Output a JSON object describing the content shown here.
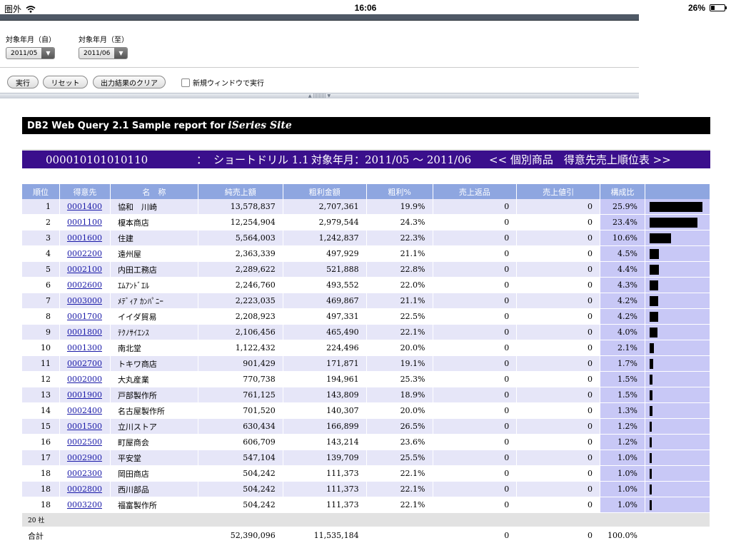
{
  "status": {
    "carrier": "圏外",
    "time": "16:06",
    "battery": "26%",
    "battery_level": 0.26
  },
  "filters": {
    "from_label": "対象年月（自）",
    "from_value": "2011/05",
    "to_label": "対象年月（至）",
    "to_value": "2011/06"
  },
  "buttons": {
    "run": "実行",
    "reset": "リセット",
    "clear": "出力結果のクリア",
    "new_window": "新規ウィンドウで実行"
  },
  "splitter_glyph": "▲ ||||||||| ▼",
  "banner": {
    "text": "DB2 Web Query 2.1 Sample report for",
    "site": "iSeries Site"
  },
  "report_title": {
    "code": "000010101010110",
    "sep": "：",
    "drill": "ショートドリル 1.1",
    "period": "対象年月：2011/05 ～ 2011/06",
    "heading": "<< 個別商品　得意先売上順位表 >>"
  },
  "columns": [
    "順位",
    "得意先",
    "名　称",
    "純売上額",
    "粗利金額",
    "粗利%",
    "売上返品",
    "売上値引",
    "構成比",
    ""
  ],
  "rows": [
    {
      "rank": "1",
      "code": "0001400",
      "name": "協和　川崎",
      "sales": "13,578,837",
      "gross": "2,707,361",
      "gross_pct": "19.9%",
      "returns": "0",
      "discounts": "0",
      "ratio": "25.9%",
      "ratio_value": 25.9
    },
    {
      "rank": "2",
      "code": "0001100",
      "name": "榎本商店",
      "sales": "12,254,904",
      "gross": "2,979,544",
      "gross_pct": "24.3%",
      "returns": "0",
      "discounts": "0",
      "ratio": "23.4%",
      "ratio_value": 23.4
    },
    {
      "rank": "3",
      "code": "0001600",
      "name": "住建",
      "sales": "5,564,003",
      "gross": "1,242,837",
      "gross_pct": "22.3%",
      "returns": "0",
      "discounts": "0",
      "ratio": "10.6%",
      "ratio_value": 10.6
    },
    {
      "rank": "4",
      "code": "0002200",
      "name": "遠州屋",
      "sales": "2,363,339",
      "gross": "497,929",
      "gross_pct": "21.1%",
      "returns": "0",
      "discounts": "0",
      "ratio": "4.5%",
      "ratio_value": 4.5
    },
    {
      "rank": "5",
      "code": "0002100",
      "name": "内田工務店",
      "sales": "2,289,622",
      "gross": "521,888",
      "gross_pct": "22.8%",
      "returns": "0",
      "discounts": "0",
      "ratio": "4.4%",
      "ratio_value": 4.4
    },
    {
      "rank": "6",
      "code": "0002600",
      "name": "ｴﾑｱﾝﾄﾞｴﾙ",
      "sales": "2,246,760",
      "gross": "493,552",
      "gross_pct": "22.0%",
      "returns": "0",
      "discounts": "0",
      "ratio": "4.3%",
      "ratio_value": 4.3
    },
    {
      "rank": "7",
      "code": "0003000",
      "name": "ﾒﾃﾞｨｱ ｶﾝﾊﾟﾆｰ",
      "sales": "2,223,035",
      "gross": "469,867",
      "gross_pct": "21.1%",
      "returns": "0",
      "discounts": "0",
      "ratio": "4.2%",
      "ratio_value": 4.2
    },
    {
      "rank": "8",
      "code": "0001700",
      "name": "イイダ貿易",
      "sales": "2,208,923",
      "gross": "497,331",
      "gross_pct": "22.5%",
      "returns": "0",
      "discounts": "0",
      "ratio": "4.2%",
      "ratio_value": 4.2
    },
    {
      "rank": "9",
      "code": "0001800",
      "name": "ﾃｸﾉｻｲｴﾝｽ",
      "sales": "2,106,456",
      "gross": "465,490",
      "gross_pct": "22.1%",
      "returns": "0",
      "discounts": "0",
      "ratio": "4.0%",
      "ratio_value": 4.0
    },
    {
      "rank": "10",
      "code": "0001300",
      "name": "南北堂",
      "sales": "1,122,432",
      "gross": "224,496",
      "gross_pct": "20.0%",
      "returns": "0",
      "discounts": "0",
      "ratio": "2.1%",
      "ratio_value": 2.1
    },
    {
      "rank": "11",
      "code": "0002700",
      "name": "トキワ商店",
      "sales": "901,429",
      "gross": "171,871",
      "gross_pct": "19.1%",
      "returns": "0",
      "discounts": "0",
      "ratio": "1.7%",
      "ratio_value": 1.7
    },
    {
      "rank": "12",
      "code": "0002000",
      "name": "大丸産業",
      "sales": "770,738",
      "gross": "194,961",
      "gross_pct": "25.3%",
      "returns": "0",
      "discounts": "0",
      "ratio": "1.5%",
      "ratio_value": 1.5
    },
    {
      "rank": "13",
      "code": "0001900",
      "name": "戸部製作所",
      "sales": "761,125",
      "gross": "143,809",
      "gross_pct": "18.9%",
      "returns": "0",
      "discounts": "0",
      "ratio": "1.5%",
      "ratio_value": 1.5
    },
    {
      "rank": "14",
      "code": "0002400",
      "name": "名古屋製作所",
      "sales": "701,520",
      "gross": "140,307",
      "gross_pct": "20.0%",
      "returns": "0",
      "discounts": "0",
      "ratio": "1.3%",
      "ratio_value": 1.3
    },
    {
      "rank": "15",
      "code": "0001500",
      "name": "立川ストア",
      "sales": "630,434",
      "gross": "166,899",
      "gross_pct": "26.5%",
      "returns": "0",
      "discounts": "0",
      "ratio": "1.2%",
      "ratio_value": 1.2
    },
    {
      "rank": "16",
      "code": "0002500",
      "name": "町屋商会",
      "sales": "606,709",
      "gross": "143,214",
      "gross_pct": "23.6%",
      "returns": "0",
      "discounts": "0",
      "ratio": "1.2%",
      "ratio_value": 1.2
    },
    {
      "rank": "17",
      "code": "0002900",
      "name": "平安堂",
      "sales": "547,104",
      "gross": "139,709",
      "gross_pct": "25.5%",
      "returns": "0",
      "discounts": "0",
      "ratio": "1.0%",
      "ratio_value": 1.0
    },
    {
      "rank": "18",
      "code": "0002300",
      "name": "岡田商店",
      "sales": "504,242",
      "gross": "111,373",
      "gross_pct": "22.1%",
      "returns": "0",
      "discounts": "0",
      "ratio": "1.0%",
      "ratio_value": 1.0
    },
    {
      "rank": "18",
      "code": "0002800",
      "name": "西川部品",
      "sales": "504,242",
      "gross": "111,373",
      "gross_pct": "22.1%",
      "returns": "0",
      "discounts": "0",
      "ratio": "1.0%",
      "ratio_value": 1.0
    },
    {
      "rank": "18",
      "code": "0003200",
      "name": "福富製作所",
      "sales": "504,242",
      "gross": "111,373",
      "gross_pct": "22.1%",
      "returns": "0",
      "discounts": "0",
      "ratio": "1.0%",
      "ratio_value": 1.0
    }
  ],
  "count_label": "20 社",
  "total": {
    "label": "合計",
    "sales": "52,390,096",
    "gross": "11,535,184",
    "returns": "0",
    "discounts": "0",
    "ratio": "100.0%"
  },
  "colors": {
    "header_bg": "#8ea6e0",
    "title_bg": "#3a0f8c",
    "odd_row": "#e6e6f8",
    "ratio_bg": "#c8c8f6",
    "link": "#1a1aa8"
  }
}
